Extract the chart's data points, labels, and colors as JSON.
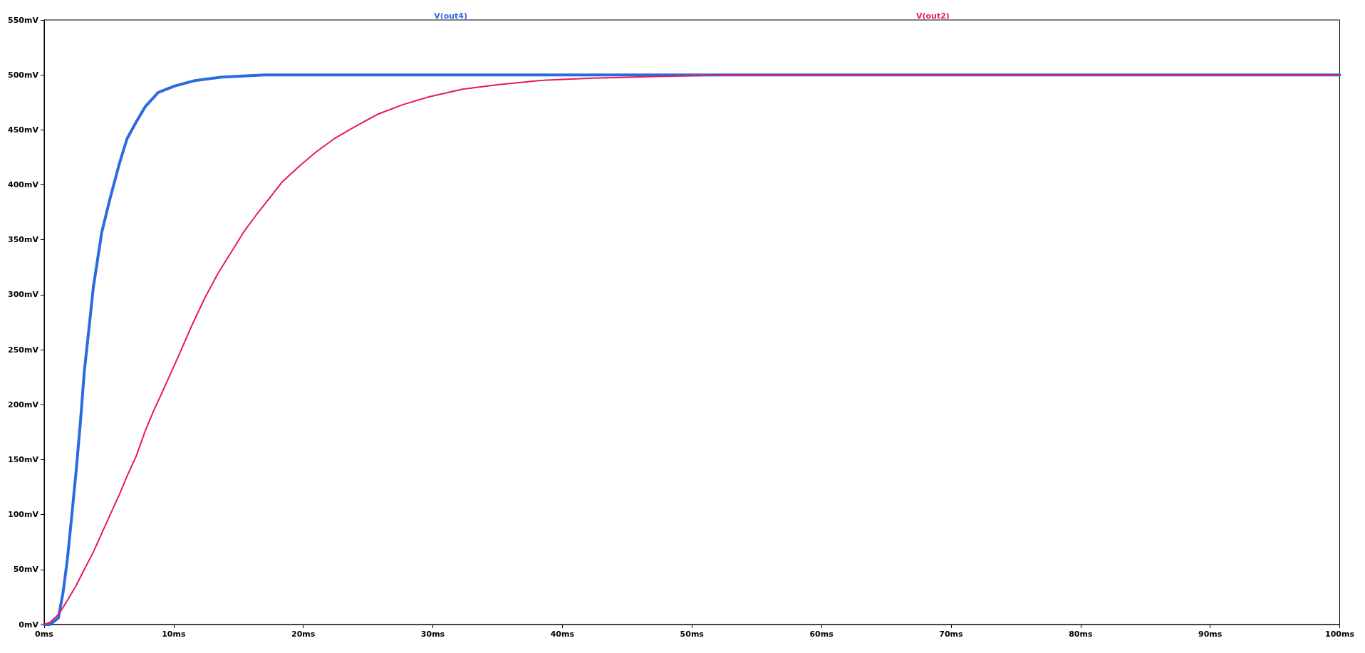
{
  "chart_data": {
    "type": "line",
    "legend": "top",
    "grid": false,
    "marker": "none",
    "line_style": "solid",
    "xlim": [
      0,
      100
    ],
    "ylim": [
      0,
      550
    ],
    "xticks": [
      {
        "value": 0,
        "label": "0ms"
      },
      {
        "value": 10,
        "label": "10ms"
      },
      {
        "value": 20,
        "label": "20ms"
      },
      {
        "value": 30,
        "label": "30ms"
      },
      {
        "value": 40,
        "label": "40ms"
      },
      {
        "value": 50,
        "label": "50ms"
      },
      {
        "value": 60,
        "label": "60ms"
      },
      {
        "value": 70,
        "label": "70ms"
      },
      {
        "value": 80,
        "label": "80ms"
      },
      {
        "value": 90,
        "label": "90ms"
      },
      {
        "value": 100,
        "label": "100ms"
      }
    ],
    "yticks": [
      {
        "value": 0,
        "label": "0mV"
      },
      {
        "value": 50,
        "label": "50mV"
      },
      {
        "value": 100,
        "label": "100mV"
      },
      {
        "value": 150,
        "label": "150mV"
      },
      {
        "value": 200,
        "label": "200mV"
      },
      {
        "value": 250,
        "label": "250mV"
      },
      {
        "value": 300,
        "label": "300mV"
      },
      {
        "value": 350,
        "label": "350mV"
      },
      {
        "value": 400,
        "label": "400mV"
      },
      {
        "value": 450,
        "label": "450mV"
      },
      {
        "value": 500,
        "label": "500mV"
      },
      {
        "value": 550,
        "label": "550mV"
      }
    ],
    "series": [
      {
        "name": "V(out4)",
        "color": "#2a6be0",
        "x": [
          0,
          0.46,
          1.1,
          1.46,
          1.8,
          2.1,
          2.45,
          2.8,
          3.1,
          3.45,
          3.8,
          4.1,
          4.45,
          5.1,
          5.8,
          6.4,
          7.1,
          7.8,
          8.8,
          10.1,
          11.7,
          13.7,
          17,
          100
        ],
        "values": [
          0,
          0,
          6,
          29,
          60,
          95,
          137,
          184,
          230,
          268,
          307,
          330,
          357,
          388,
          419,
          442,
          457,
          471,
          484,
          490,
          495,
          498,
          500,
          500
        ]
      },
      {
        "name": "V(out2)",
        "color": "#e8175d",
        "x": [
          0,
          0.46,
          1.1,
          1.8,
          2.45,
          3.1,
          3.8,
          4.45,
          5.1,
          5.8,
          6.4,
          7.1,
          7.8,
          8.4,
          9.1,
          9.75,
          10.4,
          11.4,
          12.4,
          13.4,
          14.4,
          15.4,
          16.4,
          17.4,
          18.4,
          19.7,
          21,
          22.4,
          23.7,
          25.7,
          27.7,
          29.7,
          32.3,
          35,
          38.3,
          42.3,
          47,
          53.5,
          63.5,
          100
        ],
        "values": [
          0,
          2,
          9,
          22,
          35,
          50,
          66,
          83,
          100,
          118,
          135,
          153,
          176,
          193,
          211,
          228,
          245,
          272,
          297,
          319,
          338,
          357,
          373,
          388,
          403,
          417,
          430,
          442,
          451,
          464,
          473,
          480,
          487,
          491,
          495,
          497,
          498.5,
          500,
          500,
          500
        ]
      }
    ]
  }
}
